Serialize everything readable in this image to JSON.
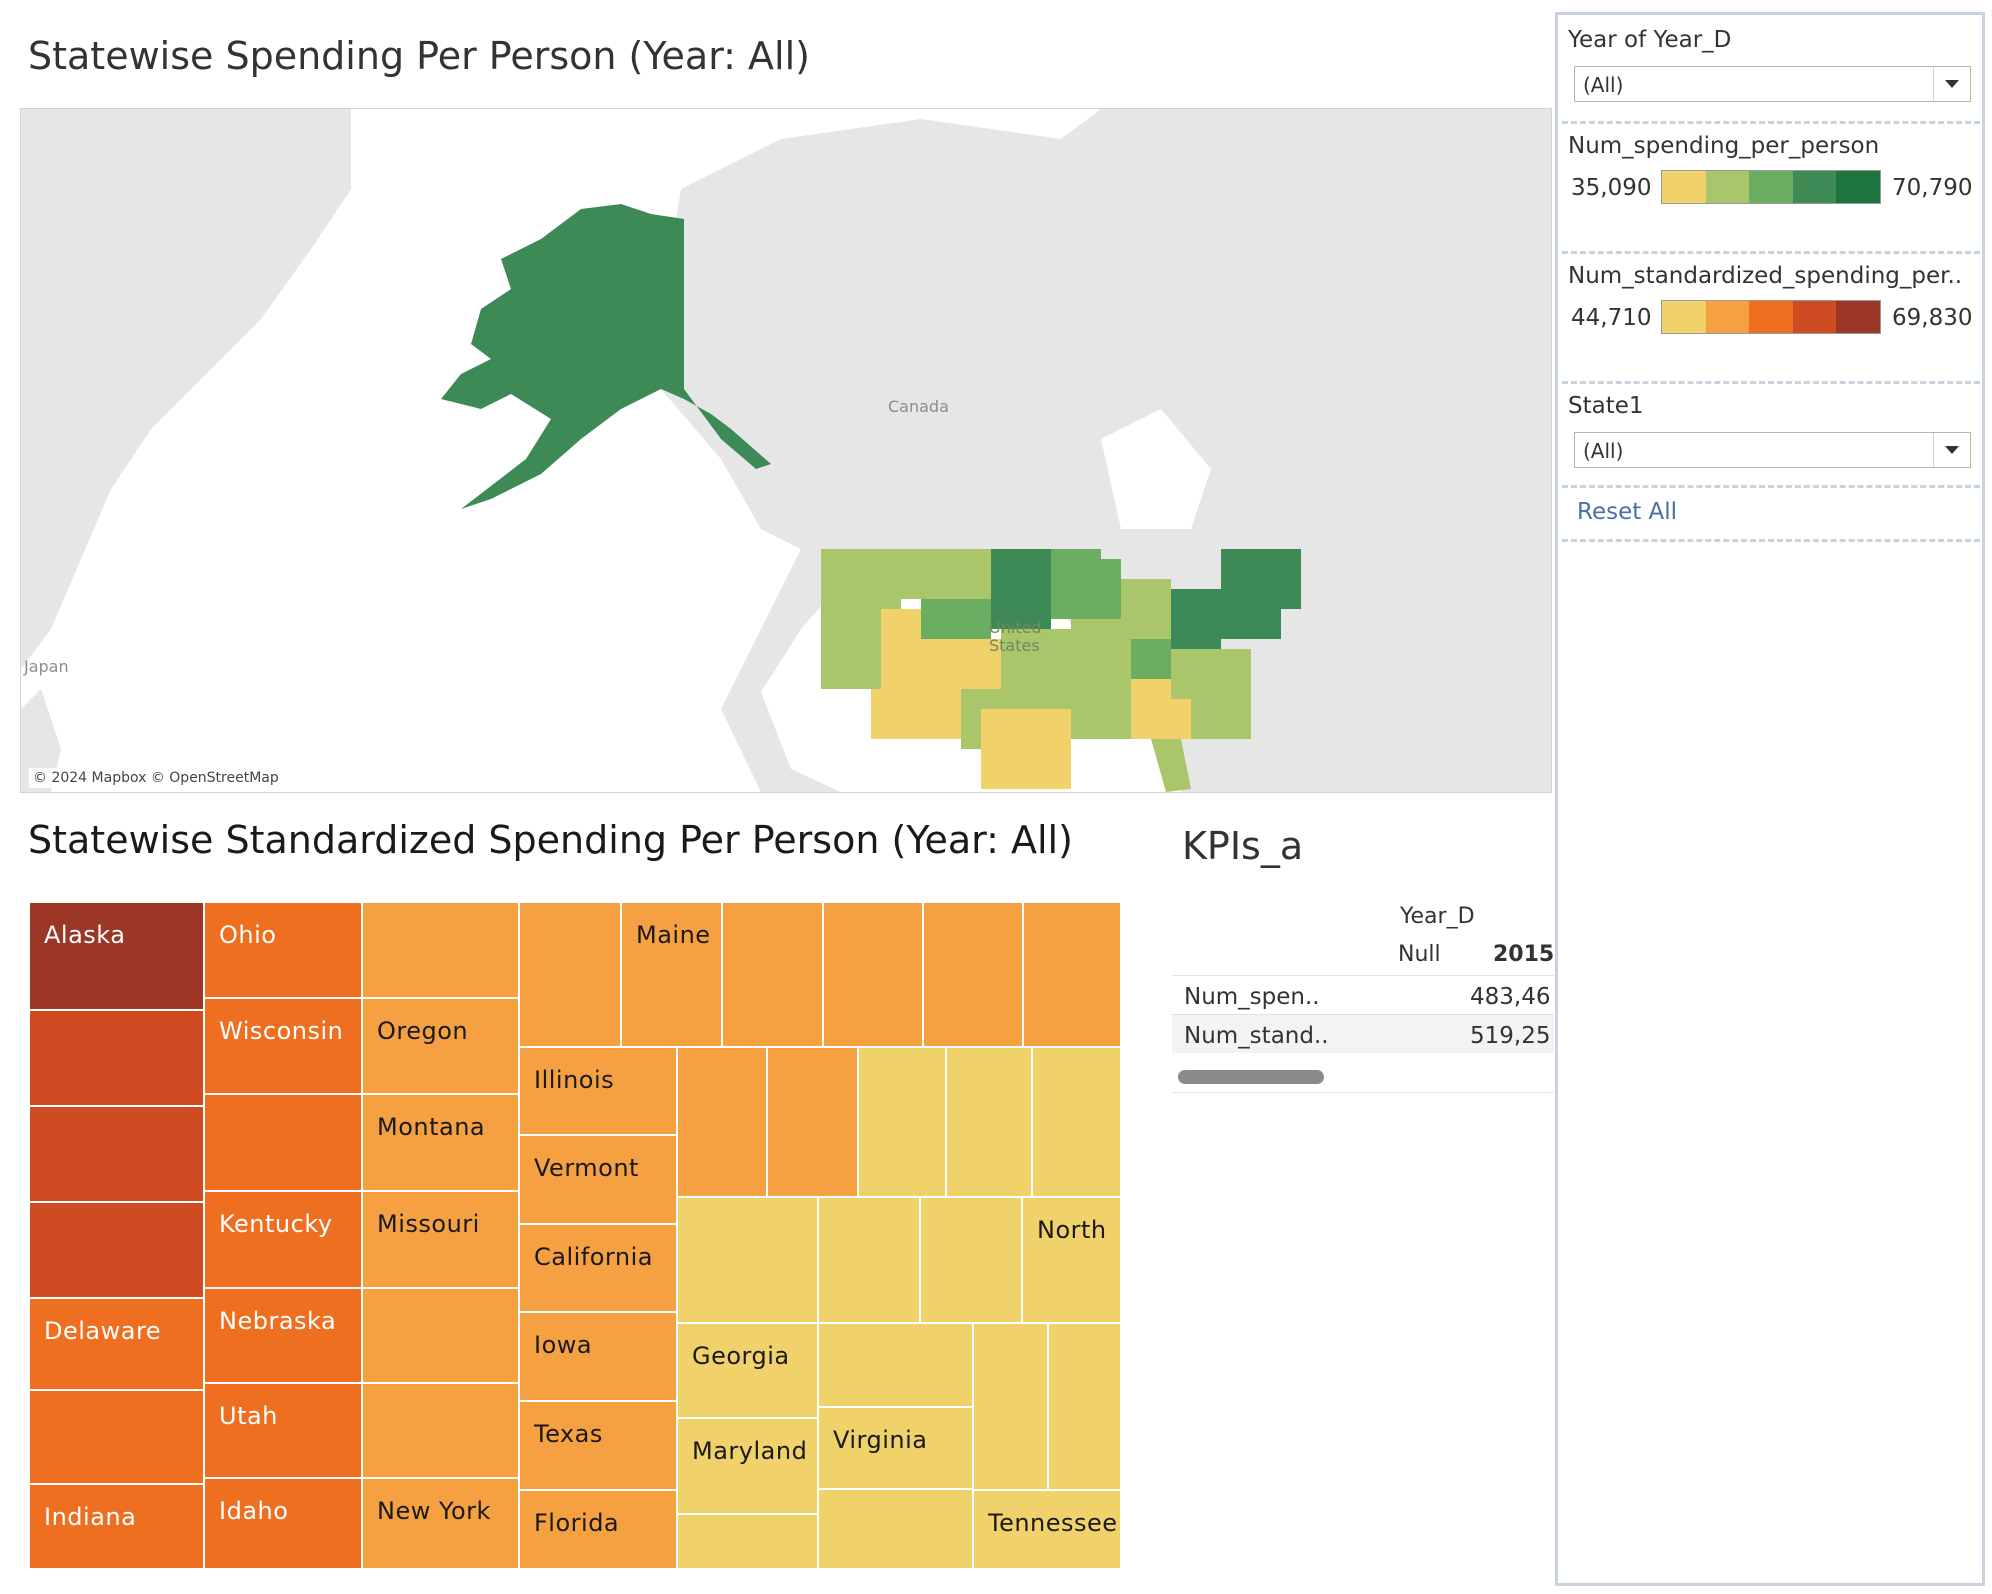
{
  "map": {
    "title": "Statewise Spending Per Person (Year: All)",
    "labels": {
      "canada": "Canada",
      "japan": "Japan",
      "united_states": "United States"
    },
    "attribution": "© 2024 Mapbox © OpenStreetMap",
    "colors": {
      "land": "#e6e6e6",
      "water": "#ffffff",
      "alaska": "#3d8a57"
    }
  },
  "treemap": {
    "title": "Statewise Standardized Spending Per Person (Year: All)",
    "tiles": [
      {
        "label": "Alaska",
        "color": "#9c3626",
        "text": "light"
      },
      {
        "label": "",
        "color": "#cf4b22"
      },
      {
        "label": "",
        "color": "#cf4b22"
      },
      {
        "label": "",
        "color": "#cf4b22"
      },
      {
        "label": "Delaware",
        "color": "#ee6f1f",
        "text": "light"
      },
      {
        "label": "",
        "color": "#ee6f1f"
      },
      {
        "label": "Indiana",
        "color": "#ee6f1f",
        "text": "light"
      },
      {
        "label": "Ohio",
        "color": "#ee6f1f",
        "text": "light"
      },
      {
        "label": "Wisconsin",
        "color": "#ee6f1f",
        "text": "light"
      },
      {
        "label": "",
        "color": "#ee6f1f"
      },
      {
        "label": "Kentucky",
        "color": "#ee6f1f",
        "text": "light"
      },
      {
        "label": "Nebraska",
        "color": "#ee6f1f",
        "text": "light"
      },
      {
        "label": "Utah",
        "color": "#ee6f1f",
        "text": "light"
      },
      {
        "label": "Idaho",
        "color": "#ee6f1f",
        "text": "light"
      },
      {
        "label": "",
        "color": "#f5a142"
      },
      {
        "label": "Oregon",
        "color": "#f5a142",
        "text": "dark"
      },
      {
        "label": "Montana",
        "color": "#f5a142",
        "text": "dark"
      },
      {
        "label": "Missouri",
        "color": "#f5a142",
        "text": "dark"
      },
      {
        "label": "",
        "color": "#f5a142"
      },
      {
        "label": "",
        "color": "#f5a142"
      },
      {
        "label": "New York",
        "color": "#f5a142",
        "text": "dark"
      },
      {
        "label": "",
        "color": "#f5a142"
      },
      {
        "label": "Maine",
        "color": "#f5a142",
        "text": "dark"
      },
      {
        "label": "",
        "color": "#f5a142"
      },
      {
        "label": "",
        "color": "#f5a142"
      },
      {
        "label": "",
        "color": "#f5a142"
      },
      {
        "label": "",
        "color": "#f5a142"
      },
      {
        "label": "Illinois",
        "color": "#f5a142",
        "text": "dark"
      },
      {
        "label": "Vermont",
        "color": "#f5a142",
        "text": "dark"
      },
      {
        "label": "California",
        "color": "#f5a142",
        "text": "dark"
      },
      {
        "label": "Iowa",
        "color": "#f5a142",
        "text": "dark"
      },
      {
        "label": "Texas",
        "color": "#f5a142",
        "text": "dark"
      },
      {
        "label": "Florida",
        "color": "#f5a142",
        "text": "dark"
      },
      {
        "label": "",
        "color": "#f5a142"
      },
      {
        "label": "",
        "color": "#f5a142"
      },
      {
        "label": "",
        "color": "#f1d16a"
      },
      {
        "label": "",
        "color": "#f1d16a"
      },
      {
        "label": "",
        "color": "#f1d16a"
      },
      {
        "label": "",
        "color": "#f1d16a"
      },
      {
        "label": "",
        "color": "#f1d16a"
      },
      {
        "label": "",
        "color": "#f1d16a"
      },
      {
        "label": "North",
        "color": "#f1d16a",
        "text": "dark"
      },
      {
        "label": "Georgia",
        "color": "#f1d16a",
        "text": "dark"
      },
      {
        "label": "Maryland",
        "color": "#f1d16a",
        "text": "dark"
      },
      {
        "label": "",
        "color": "#f1d16a"
      },
      {
        "label": "",
        "color": "#f1d16a"
      },
      {
        "label": "Virginia",
        "color": "#f1d16a",
        "text": "dark"
      },
      {
        "label": "",
        "color": "#f1d16a"
      },
      {
        "label": "",
        "color": "#f1d16a"
      },
      {
        "label": "",
        "color": "#f1d16a"
      },
      {
        "label": "Tennessee",
        "color": "#f1d16a",
        "text": "dark"
      }
    ]
  },
  "kpi": {
    "title": "KPIs_a",
    "column_header": "Year_D",
    "columns": [
      "Null",
      "2015"
    ],
    "rows": [
      {
        "name": "Num_spen..",
        "value": "483,46"
      },
      {
        "name": "Num_stand..",
        "value": "519,25"
      }
    ]
  },
  "filters": {
    "year_label": "Year of Year_D",
    "year_value": "(All)",
    "legend1": {
      "label": "Num_spending_per_person",
      "min": "35,090",
      "max": "70,790",
      "colors": [
        "#f1d16a",
        "#a9c66a",
        "#6bae62",
        "#3d8a57",
        "#1f7540"
      ]
    },
    "legend2": {
      "label": "Num_standardized_spending_per..",
      "min": "44,710",
      "max": "69,830",
      "colors": [
        "#f1d16a",
        "#f5a142",
        "#ee6f1f",
        "#cf4b22",
        "#9c3626"
      ]
    },
    "state_label": "State1",
    "state_value": "(All)",
    "reset": "Reset All"
  }
}
